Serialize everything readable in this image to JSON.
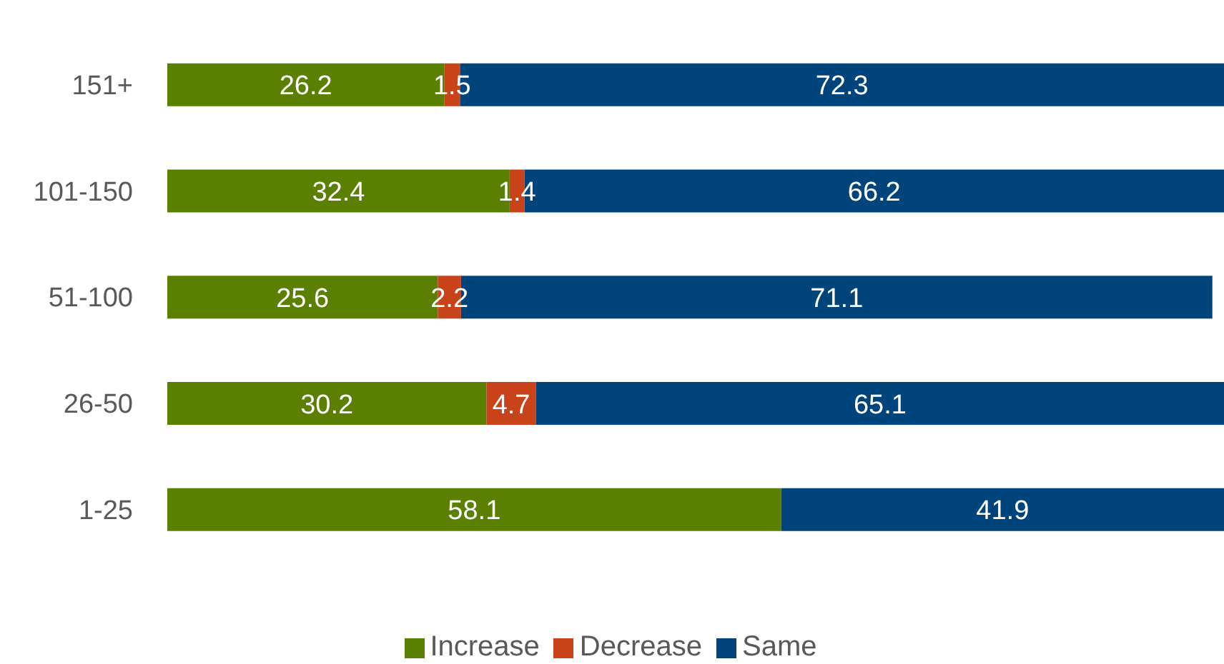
{
  "chart_data": {
    "type": "bar",
    "orientation": "horizontal",
    "stacked": true,
    "categories": [
      "151+",
      "101-150",
      "51-100",
      "26-50",
      "1-25"
    ],
    "series": [
      {
        "name": "Increase",
        "color": "#5b7f00",
        "values": [
          26.2,
          32.4,
          25.6,
          30.2,
          58.1
        ]
      },
      {
        "name": "Decrease",
        "color": "#c8421a",
        "values": [
          1.5,
          1.4,
          2.2,
          4.7,
          null
        ]
      },
      {
        "name": "Same",
        "color": "#00447c",
        "values": [
          72.3,
          66.2,
          71.1,
          65.1,
          41.9
        ]
      }
    ],
    "xlim": [
      0,
      100
    ],
    "tick_labels": "y",
    "data_labels": true,
    "legend": "bottom"
  }
}
